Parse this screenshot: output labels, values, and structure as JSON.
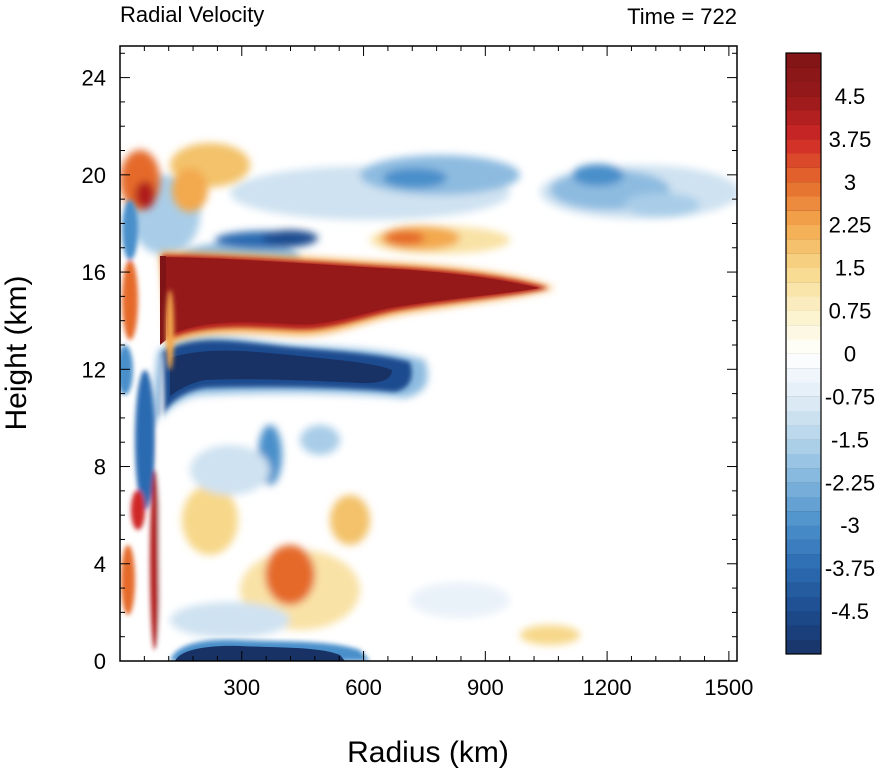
{
  "chart_data": {
    "type": "heatmap",
    "title_left": "Radial Velocity",
    "title_right": "Time = 722",
    "xlabel": "Radius (km)",
    "ylabel": "Height (km)",
    "xlim": [
      0,
      1520
    ],
    "ylim": [
      0,
      25.3
    ],
    "x_ticks": [
      300,
      600,
      900,
      1200,
      1500
    ],
    "y_ticks": [
      0,
      4,
      8,
      12,
      16,
      20,
      24
    ],
    "x_tick_labels": [
      "300",
      "600",
      "900",
      "1200",
      "1500"
    ],
    "y_tick_labels": [
      "0",
      "4",
      "8",
      "12",
      "16",
      "20",
      "24"
    ],
    "grid": false,
    "colorbar": {
      "min": -5.25,
      "max": 5.25,
      "step": 0.25,
      "labels": [
        "4.5",
        "3.75",
        "3",
        "2.25",
        "1.5",
        "0.75",
        "0",
        "-0.75",
        "-1.5",
        "-2.25",
        "-3",
        "-3.75",
        "-4.5"
      ],
      "label_values": [
        4.5,
        3.75,
        3,
        2.25,
        1.5,
        0.75,
        0,
        -0.75,
        -1.5,
        -2.25,
        -3,
        -3.75,
        -4.5
      ],
      "colors": [
        "#183266",
        "#1e4c8f",
        "#2b6bb1",
        "#4a8fca",
        "#7fb4dc",
        "#b5d4ea",
        "#e1edf6",
        "#ffffff",
        "#fbf0c8",
        "#f7d88a",
        "#f3a94e",
        "#e56b2c",
        "#cf2727",
        "#961919",
        "#7f1417"
      ]
    },
    "features": [
      {
        "name": "upper outflow jet",
        "r": [
          100,
          1050
        ],
        "z": [
          13.3,
          16.8
        ],
        "sign": "positive",
        "max_value": 5.25
      },
      {
        "name": "inflow layer below outflow",
        "r": [
          100,
          700
        ],
        "z": [
          10.8,
          13.3
        ],
        "sign": "negative",
        "min_value": -5.25
      },
      {
        "name": "boundary layer inflow",
        "r": [
          80,
          500
        ],
        "z": [
          0,
          0.8
        ],
        "sign": "negative",
        "min_value": -5
      },
      {
        "name": "upper level inflow",
        "r": [
          320,
          1450
        ],
        "z": [
          17.5,
          21
        ],
        "sign": "negative",
        "min_value": -2.5
      },
      {
        "name": "secondary outflow above jet",
        "r": [
          620,
          840
        ],
        "z": [
          16.5,
          18.2
        ],
        "sign": "positive",
        "max_value": 2.8
      }
    ]
  }
}
